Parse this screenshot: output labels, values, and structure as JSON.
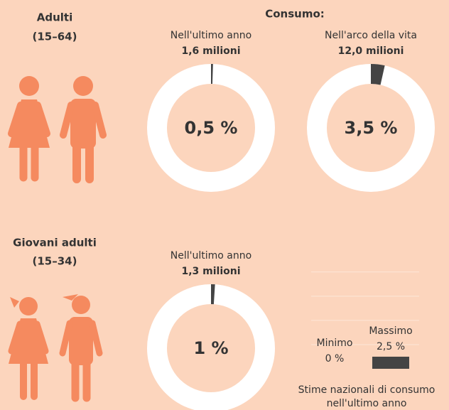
{
  "heading": "Consumo:",
  "sections": [
    {
      "title": "Adulti",
      "subtitle": "(15–64)"
    },
    {
      "title": "Giovani adulti",
      "subtitle": "(15–34)"
    }
  ],
  "chart_data": [
    {
      "type": "donut",
      "title": "Nell'ultimo anno",
      "subtitle": "1,6 milioni",
      "values": [
        0.5
      ],
      "value_labels": [
        "0,5 %"
      ],
      "color": "#444444",
      "track_color": "#ffffff"
    },
    {
      "type": "donut",
      "title": "Nell'arco della vita",
      "subtitle": "12,0 milioni",
      "values": [
        3.5
      ],
      "value_labels": [
        "3,5 %"
      ],
      "color": "#444444",
      "track_color": "#ffffff"
    },
    {
      "type": "donut",
      "title": "Nell'ultimo anno",
      "subtitle": "1,3 milioni",
      "values": [
        1
      ],
      "value_labels": [
        "1 %"
      ],
      "color": "#444444",
      "track_color": "#ffffff"
    },
    {
      "type": "bar",
      "caption": [
        "Stime nazionali di consumo",
        "nell'ultimo anno"
      ],
      "categories": [
        "Minimo",
        "Massimo"
      ],
      "values": [
        0,
        2.5
      ],
      "value_labels": [
        "0 %",
        "2,5 %"
      ],
      "color": "#444444",
      "ylim": [
        0,
        21
      ],
      "yticks": [
        5,
        10,
        15,
        20
      ],
      "grid": true
    }
  ]
}
